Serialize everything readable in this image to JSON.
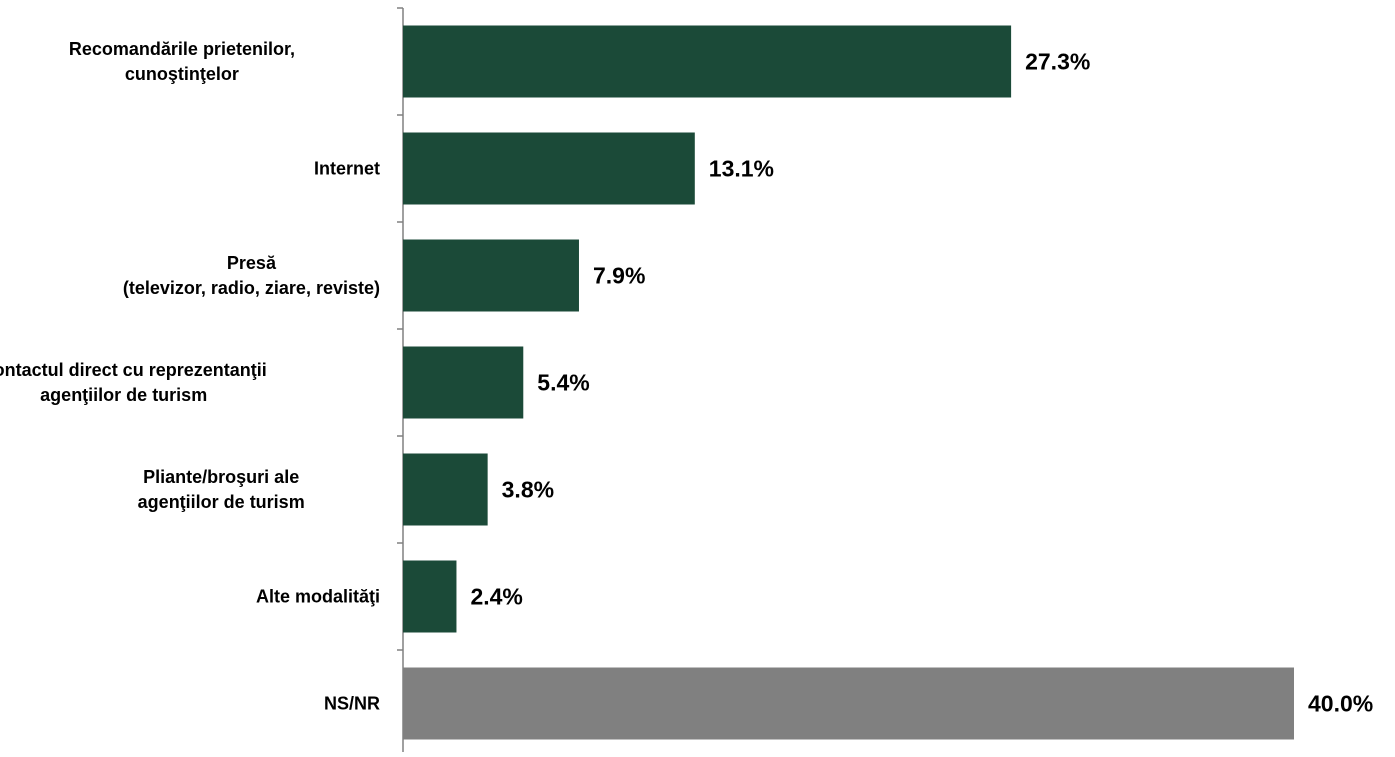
{
  "chart_data": {
    "type": "bar",
    "orientation": "horizontal",
    "categories": [
      [
        "Recomandările prietenilor,",
        "cunoştinţelor"
      ],
      [
        "Internet"
      ],
      [
        "Presă",
        "(televizor, radio, ziare, reviste)"
      ],
      [
        "Contactul direct cu reprezentanţii",
        "agenţiilor de turism"
      ],
      [
        "Pliante/broşuri  ale",
        "agenţiilor de turism"
      ],
      [
        "Alte modalităţi"
      ],
      [
        "NS/NR"
      ]
    ],
    "values": [
      27.3,
      13.1,
      7.9,
      5.4,
      3.8,
      2.4,
      40.0
    ],
    "value_labels": [
      "27.3%",
      "13.1%",
      "7.9%",
      "5.4%",
      "3.8%",
      "2.4%",
      "40.0%"
    ],
    "bar_colors": [
      "#1b4a38",
      "#1b4a38",
      "#1b4a38",
      "#1b4a38",
      "#1b4a38",
      "#1b4a38",
      "#808080"
    ],
    "xlim": [
      0,
      40
    ],
    "grid": false,
    "legend": "none",
    "axis_color": "#808080",
    "label_color": "#000000"
  }
}
